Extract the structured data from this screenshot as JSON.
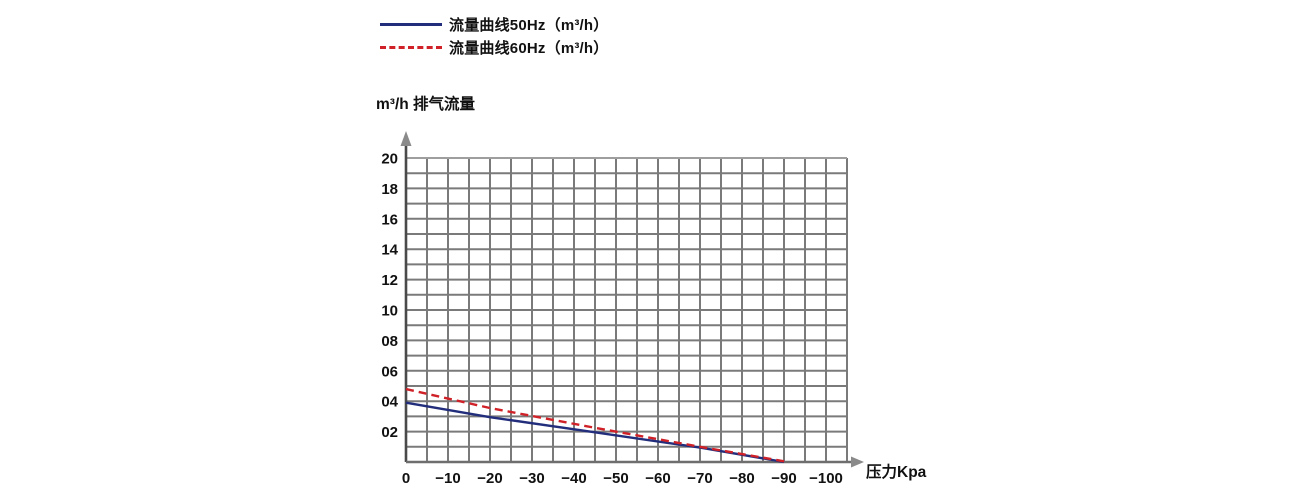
{
  "chart_data": {
    "type": "line",
    "title": "",
    "x_axis": {
      "label": "压力Kpa",
      "ticks": [
        {
          "label": "0",
          "v": 0
        },
        {
          "label": "−10",
          "v": -10
        },
        {
          "label": "−20",
          "v": -20
        },
        {
          "label": "−30",
          "v": -30
        },
        {
          "label": "−40",
          "v": -40
        },
        {
          "label": "−50",
          "v": -50
        },
        {
          "label": "−60",
          "v": -60
        },
        {
          "label": "−70",
          "v": -70
        },
        {
          "label": "−80",
          "v": -80
        },
        {
          "label": "−90",
          "v": -90
        },
        {
          "label": "−100",
          "v": -100
        }
      ],
      "range": [
        0,
        -105
      ],
      "minor_grid_step_kpa": 5
    },
    "y_axis": {
      "label": "m³/h 排气流量",
      "ticks": [
        {
          "label": "20",
          "v": 20
        },
        {
          "label": "18",
          "v": 18
        },
        {
          "label": "16",
          "v": 16
        },
        {
          "label": "14",
          "v": 14
        },
        {
          "label": "12",
          "v": 12
        },
        {
          "label": "10",
          "v": 10
        },
        {
          "label": "08",
          "v": 8
        },
        {
          "label": "06",
          "v": 6
        },
        {
          "label": "04",
          "v": 4
        },
        {
          "label": "02",
          "v": 2
        }
      ],
      "range": [
        0,
        20
      ],
      "minor_grid_step": 1
    },
    "grid": {
      "visible": true,
      "color": "#7a7a7a",
      "top_line_color": "#9e9e9e",
      "columns": 21,
      "rows": 20
    },
    "axis_colors": {
      "y_axis": "#4a4a4a",
      "x_axis": "#6e6e6e",
      "arrow": "#8a8a8a"
    },
    "legend_position": "top",
    "series": [
      {
        "name": "流量曲线50Hz（m³/h）",
        "color": "#222e7c",
        "style": "solid",
        "points": [
          [
            0,
            3.9
          ],
          [
            -20,
            2.95
          ],
          [
            -45,
            1.95
          ],
          [
            -70,
            0.95
          ],
          [
            -90,
            0
          ]
        ]
      },
      {
        "name": "流量曲线60Hz（m³/h）",
        "color": "#cf2127",
        "style": "dashed",
        "points": [
          [
            0,
            4.8
          ],
          [
            -20,
            3.55
          ],
          [
            -45,
            2.25
          ],
          [
            -70,
            1.0
          ],
          [
            -91,
            0
          ]
        ]
      }
    ]
  }
}
